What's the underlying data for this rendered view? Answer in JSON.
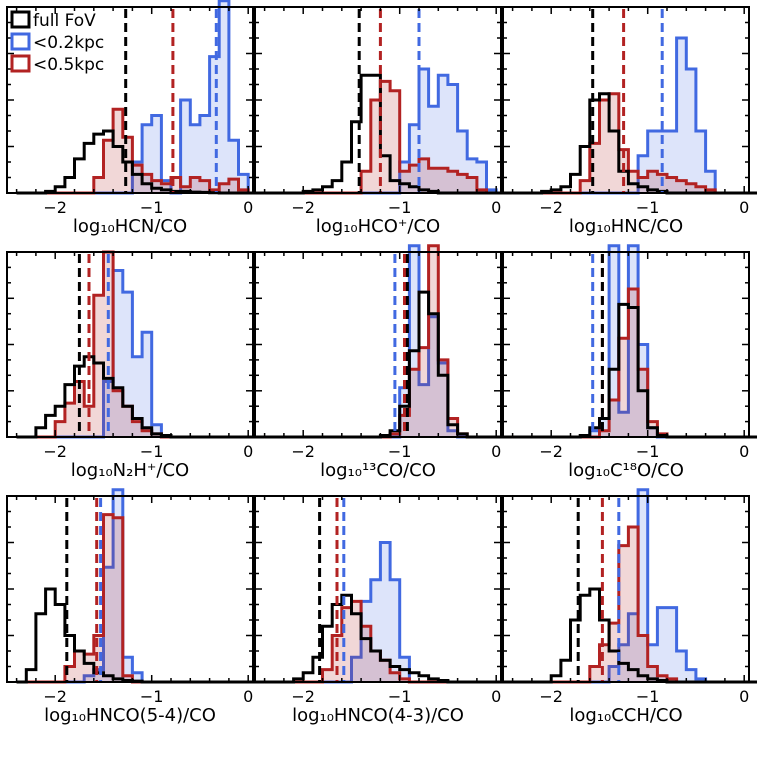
{
  "colors": {
    "full": "#000000",
    "r02": "#4169e1",
    "r05": "#b22222"
  },
  "legend": [
    {
      "key": "full",
      "label": "full FoV"
    },
    {
      "key": "r02",
      "label": "<0.2kpc"
    },
    {
      "key": "r05",
      "label": "<0.5kpc"
    }
  ],
  "chart_data": [
    {
      "type": "histogram",
      "xlabel": "log₁₀HCN/CO",
      "xlim": [
        -2.5,
        0.05
      ],
      "xticks": [
        -2,
        -1,
        0
      ],
      "x0": -2.4,
      "binw": 0.1,
      "ymax": 0.6,
      "markers": {
        "full": -1.27,
        "r02": -0.33,
        "r05": -0.78
      },
      "series": [
        {
          "key": "full",
          "name": "full FoV",
          "values": [
            0,
            0,
            0,
            0.005,
            0.02,
            0.05,
            0.11,
            0.16,
            0.19,
            0.2,
            0.15,
            0.1,
            0.06,
            0.03,
            0.015,
            0.01,
            0.005,
            0.005,
            0.003,
            0.002,
            0.001,
            0,
            0,
            0,
            0,
            0,
            0
          ],
          "fill": false
        },
        {
          "key": "r02",
          "name": "<0.2kpc",
          "values": [
            0,
            0,
            0,
            0,
            0,
            0,
            0,
            0,
            0,
            0,
            0,
            0,
            0.1,
            0.22,
            0.25,
            0.04,
            0,
            0.3,
            0.22,
            0.25,
            0.44,
            0.62,
            0.17,
            0.06,
            0,
            0,
            0
          ],
          "fill": true
        },
        {
          "key": "r05",
          "name": "<0.5kpc",
          "values": [
            0,
            0,
            0,
            0,
            0,
            0,
            0,
            0,
            0.05,
            0.17,
            0.27,
            0.18,
            0.09,
            0.06,
            0.04,
            0.03,
            0.05,
            0.02,
            0.05,
            0.04,
            0.01,
            0.03,
            0.045,
            0.01,
            0,
            0,
            0
          ],
          "fill": true
        }
      ]
    },
    {
      "type": "histogram",
      "xlabel": "log₁₀HCO⁺/CO",
      "xlim": [
        -2.5,
        0.05
      ],
      "xticks": [
        -2,
        -1,
        0
      ],
      "x0": -2.4,
      "binw": 0.1,
      "ymax": 0.6,
      "markers": {
        "full": -1.42,
        "r02": -0.8,
        "r05": -1.2
      },
      "series": [
        {
          "key": "full",
          "name": "full FoV",
          "values": [
            0,
            0,
            0,
            0,
            0.005,
            0.01,
            0.02,
            0.04,
            0.1,
            0.23,
            0.38,
            0.38,
            0.12,
            0.04,
            0.03,
            0.02,
            0.01,
            0.005,
            0,
            0,
            0,
            0,
            0,
            0,
            0,
            0,
            0
          ],
          "fill": false
        },
        {
          "key": "r02",
          "name": "<0.2kpc",
          "values": [
            0,
            0,
            0,
            0,
            0,
            0,
            0,
            0,
            0,
            0,
            0,
            0,
            0,
            0,
            0.1,
            0.22,
            0.4,
            0.28,
            0.38,
            0.35,
            0.2,
            0.11,
            0.1,
            0.01,
            0,
            0,
            0
          ],
          "fill": true
        },
        {
          "key": "r05",
          "name": "<0.5kpc",
          "values": [
            0,
            0,
            0,
            0,
            0,
            0,
            0,
            0,
            0,
            0,
            0.07,
            0.3,
            0.36,
            0.33,
            0.07,
            0.09,
            0.11,
            0.08,
            0.08,
            0.07,
            0.06,
            0.05,
            0.01,
            0,
            0,
            0,
            0
          ],
          "fill": true
        }
      ]
    },
    {
      "type": "histogram",
      "xlabel": "log₁₀HNC/CO",
      "xlim": [
        -2.5,
        0.05
      ],
      "xticks": [
        -2,
        -1,
        0
      ],
      "x0": -2.4,
      "binw": 0.1,
      "ymax": 0.6,
      "markers": {
        "full": -1.57,
        "r02": -0.85,
        "r05": -1.25
      },
      "series": [
        {
          "key": "full",
          "name": "full FoV",
          "values": [
            0,
            0,
            0,
            0.005,
            0.01,
            0.02,
            0.06,
            0.15,
            0.3,
            0.32,
            0.2,
            0.07,
            0.03,
            0.02,
            0.01,
            0.005,
            0,
            0,
            0,
            0,
            0,
            0,
            0,
            0,
            0,
            0,
            0
          ],
          "fill": false
        },
        {
          "key": "r02",
          "name": "<0.2kpc",
          "values": [
            0,
            0,
            0,
            0,
            0,
            0,
            0,
            0,
            0,
            0,
            0,
            0,
            0,
            0.12,
            0.2,
            0.2,
            0.2,
            0.5,
            0.4,
            0.2,
            0.07,
            0,
            0,
            0,
            0,
            0,
            0
          ],
          "fill": true
        },
        {
          "key": "r05",
          "name": "<0.5kpc",
          "values": [
            0,
            0,
            0,
            0,
            0,
            0,
            0,
            0.04,
            0.16,
            0.3,
            0.32,
            0.14,
            0.07,
            0.05,
            0.07,
            0.06,
            0.05,
            0.04,
            0.03,
            0.02,
            0.01,
            0,
            0,
            0,
            0,
            0,
            0
          ],
          "fill": true
        }
      ]
    },
    {
      "type": "histogram",
      "xlabel": "log₁₀N₂H⁺/CO",
      "xlim": [
        -2.5,
        0.05
      ],
      "xticks": [
        -2,
        -1,
        0
      ],
      "x0": -2.4,
      "binw": 0.1,
      "ymax": 0.6,
      "markers": {
        "full": -1.75,
        "r02": -1.45,
        "r05": -1.65
      },
      "series": [
        {
          "key": "full",
          "name": "full FoV",
          "values": [
            0,
            0,
            0.03,
            0.07,
            0.1,
            0.17,
            0.23,
            0.26,
            0.24,
            0.19,
            0.16,
            0.1,
            0.06,
            0.03,
            0.01,
            0.005,
            0,
            0,
            0,
            0,
            0,
            0,
            0,
            0,
            0,
            0,
            0
          ],
          "fill": false
        },
        {
          "key": "r02",
          "name": "<0.2kpc",
          "values": [
            0,
            0,
            0,
            0,
            0,
            0,
            0,
            0,
            0,
            0.18,
            0.54,
            0.47,
            0.26,
            0.34,
            0.04,
            0,
            0,
            0,
            0,
            0,
            0,
            0,
            0,
            0,
            0,
            0,
            0
          ],
          "fill": true
        },
        {
          "key": "r05",
          "name": "<0.5kpc",
          "values": [
            0,
            0,
            0,
            0,
            0.05,
            0.11,
            0.18,
            0.1,
            0.46,
            0.6,
            0.15,
            0.1,
            0.05,
            0.02,
            0.01,
            0,
            0,
            0,
            0,
            0,
            0,
            0,
            0,
            0,
            0,
            0,
            0
          ],
          "fill": true
        }
      ]
    },
    {
      "type": "histogram",
      "xlabel": "log₁₀¹³CO/CO",
      "xlim": [
        -2.5,
        0.05
      ],
      "xticks": [
        -2,
        -1,
        0
      ],
      "x0": -2.4,
      "binw": 0.1,
      "ymax": 0.6,
      "markers": {
        "full": -0.92,
        "r02": -1.05,
        "r05": -0.95
      },
      "series": [
        {
          "key": "full",
          "name": "full FoV",
          "values": [
            0,
            0,
            0,
            0,
            0,
            0,
            0,
            0,
            0,
            0,
            0,
            0,
            0.005,
            0.02,
            0.1,
            0.28,
            0.47,
            0.4,
            0.2,
            0.04,
            0.01,
            0,
            0,
            0,
            0,
            0,
            0
          ],
          "fill": false
        },
        {
          "key": "r02",
          "name": "<0.2kpc",
          "values": [
            0,
            0,
            0,
            0,
            0,
            0,
            0,
            0,
            0,
            0,
            0,
            0,
            0,
            0,
            0.16,
            0.62,
            0.17,
            0.39,
            0.24,
            0.02,
            0,
            0,
            0,
            0,
            0,
            0,
            0
          ],
          "fill": true
        },
        {
          "key": "r05",
          "name": "<0.5kpc",
          "values": [
            0,
            0,
            0,
            0,
            0,
            0,
            0,
            0,
            0,
            0,
            0,
            0,
            0,
            0.01,
            0.07,
            0.22,
            0.29,
            0.62,
            0.25,
            0.06,
            0.01,
            0,
            0,
            0,
            0,
            0,
            0
          ],
          "fill": true
        }
      ]
    },
    {
      "type": "histogram",
      "xlabel": "log₁₀C¹⁸O/CO",
      "xlim": [
        -2.5,
        0.05
      ],
      "xticks": [
        -2,
        -1,
        0
      ],
      "x0": -2.4,
      "binw": 0.1,
      "ymax": 0.6,
      "markers": {
        "full": -1.47,
        "r02": -1.57,
        "r05": -1.47
      },
      "series": [
        {
          "key": "full",
          "name": "full FoV",
          "values": [
            0,
            0,
            0,
            0,
            0,
            0,
            0,
            0.005,
            0.03,
            0.06,
            0.22,
            0.43,
            0.42,
            0.15,
            0.03,
            0.005,
            0,
            0,
            0,
            0,
            0,
            0,
            0,
            0,
            0,
            0,
            0
          ],
          "fill": false
        },
        {
          "key": "r02",
          "name": "<0.2kpc",
          "values": [
            0,
            0,
            0,
            0,
            0,
            0,
            0,
            0,
            0.02,
            0.06,
            0.62,
            0.08,
            0.62,
            0.3,
            0.03,
            0,
            0,
            0,
            0,
            0,
            0,
            0,
            0,
            0,
            0,
            0,
            0
          ],
          "fill": true
        },
        {
          "key": "r05",
          "name": "<0.5kpc",
          "values": [
            0,
            0,
            0,
            0,
            0,
            0,
            0,
            0,
            0,
            0.02,
            0.12,
            0.32,
            0.48,
            0.22,
            0.05,
            0.01,
            0,
            0,
            0,
            0,
            0,
            0,
            0,
            0,
            0,
            0,
            0
          ],
          "fill": true
        }
      ]
    },
    {
      "type": "histogram",
      "xlabel": "log₁₀HNCO(5-4)/CO",
      "xlim": [
        -2.5,
        0.05
      ],
      "xticks": [
        -2,
        -1,
        0
      ],
      "x0": -2.4,
      "binw": 0.1,
      "ymax": 0.6,
      "markers": {
        "full": -1.88,
        "r02": -1.53,
        "r05": -1.57
      },
      "series": [
        {
          "key": "full",
          "name": "full FoV",
          "values": [
            0,
            0.04,
            0.22,
            0.3,
            0.25,
            0.15,
            0.1,
            0.06,
            0.03,
            0.02,
            0.01,
            0.005,
            0.003,
            0,
            0,
            0,
            0,
            0,
            0,
            0,
            0,
            0,
            0,
            0,
            0,
            0,
            0
          ],
          "fill": false
        },
        {
          "key": "r02",
          "name": "<0.2kpc",
          "values": [
            0,
            0,
            0,
            0,
            0,
            0,
            0,
            0.02,
            0.04,
            0.37,
            0.62,
            0.08,
            0.03,
            0,
            0,
            0,
            0,
            0,
            0,
            0,
            0,
            0,
            0,
            0,
            0,
            0,
            0
          ],
          "fill": true
        },
        {
          "key": "r05",
          "name": "<0.5kpc",
          "values": [
            0,
            0,
            0,
            0,
            0,
            0.05,
            0.1,
            0.09,
            0.15,
            0.54,
            0.53,
            0.02,
            0,
            0,
            0,
            0,
            0,
            0,
            0,
            0,
            0,
            0,
            0,
            0,
            0,
            0,
            0
          ],
          "fill": true
        }
      ]
    },
    {
      "type": "histogram",
      "xlabel": "log₁₀HNCO(4-3)/CO",
      "xlim": [
        -2.5,
        0.05
      ],
      "xticks": [
        -2,
        -1,
        0
      ],
      "x0": -2.4,
      "binw": 0.1,
      "ymax": 0.6,
      "markers": {
        "full": -1.83,
        "r02": -1.58,
        "r05": -1.65
      },
      "series": [
        {
          "key": "full",
          "name": "full FoV",
          "values": [
            0,
            0,
            0,
            0.01,
            0.03,
            0.08,
            0.18,
            0.25,
            0.28,
            0.22,
            0.14,
            0.1,
            0.07,
            0.05,
            0.04,
            0.03,
            0.02,
            0.01,
            0.005,
            0,
            0,
            0,
            0,
            0,
            0,
            0,
            0
          ],
          "fill": false
        },
        {
          "key": "r02",
          "name": "<0.2kpc",
          "values": [
            0,
            0,
            0,
            0,
            0,
            0,
            0,
            0,
            0,
            0.08,
            0.26,
            0.33,
            0.45,
            0.33,
            0.08,
            0,
            0,
            0,
            0,
            0,
            0,
            0,
            0,
            0,
            0,
            0,
            0
          ],
          "fill": true
        },
        {
          "key": "r05",
          "name": "<0.5kpc",
          "values": [
            0,
            0,
            0,
            0,
            0,
            0,
            0.04,
            0.15,
            0.24,
            0.26,
            0.18,
            0.1,
            0.07,
            0.03,
            0.01,
            0,
            0,
            0,
            0,
            0,
            0,
            0,
            0,
            0,
            0,
            0,
            0
          ],
          "fill": true
        }
      ]
    },
    {
      "type": "histogram",
      "xlabel": "log₁₀CCH/CO",
      "xlim": [
        -2.5,
        0.05
      ],
      "xticks": [
        -2,
        -1,
        0
      ],
      "x0": -2.4,
      "binw": 0.1,
      "ymax": 0.6,
      "markers": {
        "full": -1.72,
        "r02": -1.3,
        "r05": -1.47
      },
      "series": [
        {
          "key": "full",
          "name": "full FoV",
          "values": [
            0,
            0,
            0,
            0,
            0.02,
            0.07,
            0.2,
            0.28,
            0.3,
            0.2,
            0.1,
            0.06,
            0.04,
            0.02,
            0.01,
            0.005,
            0,
            0,
            0,
            0,
            0,
            0,
            0,
            0,
            0,
            0,
            0
          ],
          "fill": false
        },
        {
          "key": "r02",
          "name": "<0.2kpc",
          "values": [
            0,
            0,
            0,
            0,
            0,
            0,
            0,
            0,
            0,
            0,
            0.05,
            0.12,
            0.22,
            0.62,
            0.12,
            0.24,
            0.24,
            0.1,
            0.04,
            0.01,
            0,
            0,
            0,
            0,
            0,
            0,
            0
          ],
          "fill": true
        },
        {
          "key": "r05",
          "name": "<0.5kpc",
          "values": [
            0,
            0,
            0,
            0,
            0,
            0,
            0,
            0,
            0.05,
            0.12,
            0.19,
            0.44,
            0.5,
            0.15,
            0.05,
            0.02,
            0.01,
            0,
            0,
            0,
            0,
            0,
            0,
            0,
            0,
            0,
            0
          ],
          "fill": true
        }
      ]
    }
  ]
}
